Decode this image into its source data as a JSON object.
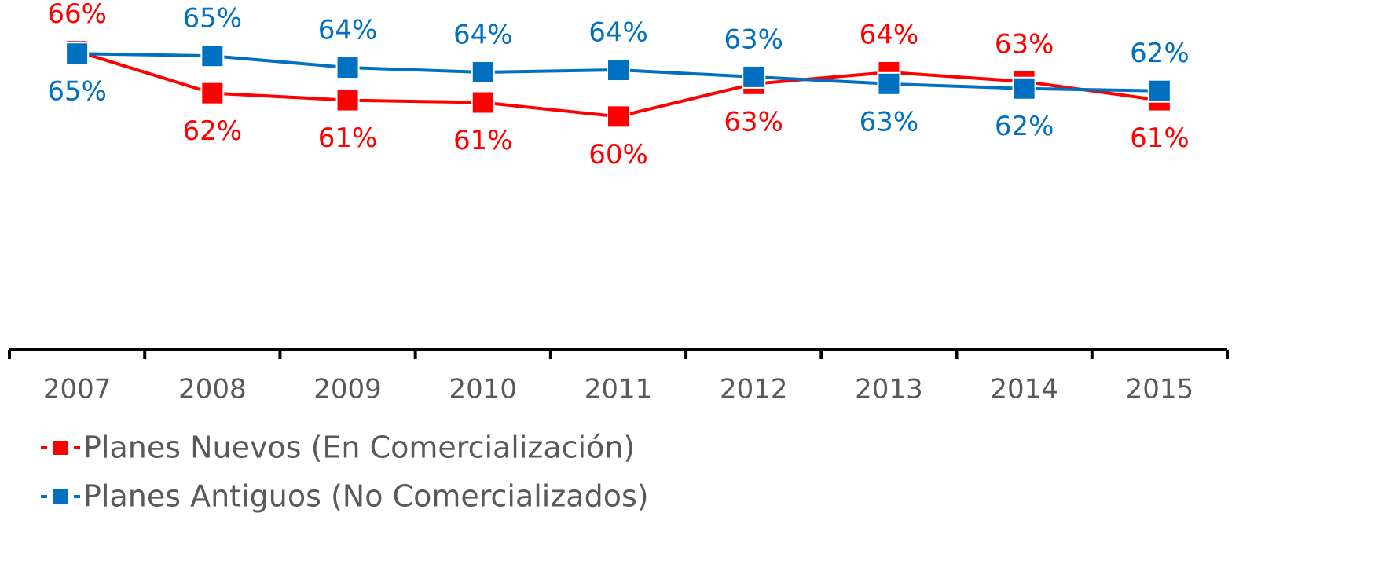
{
  "chart_data": {
    "type": "line",
    "categories": [
      "2007",
      "2008",
      "2009",
      "2010",
      "2011",
      "2012",
      "2013",
      "2014",
      "2015"
    ],
    "ylim": [
      40,
      70
    ],
    "series": [
      {
        "name": "Planes Nuevos (En Comercialización)",
        "color": "#ff0000",
        "values": [
          65.6,
          62.0,
          61.4,
          61.2,
          60.0,
          62.8,
          63.8,
          63.0,
          61.4
        ],
        "value_labels": [
          "66%",
          "62%",
          "61%",
          "61%",
          "60%",
          "63%",
          "64%",
          "63%",
          "61%"
        ]
      },
      {
        "name": "Planes Antiguos (No Comercializados)",
        "color": "#0070c0",
        "values": [
          65.4,
          65.2,
          64.2,
          63.8,
          64.0,
          63.4,
          62.8,
          62.4,
          62.2
        ],
        "value_labels": [
          "65%",
          "65%",
          "64%",
          "64%",
          "64%",
          "63%",
          "63%",
          "62%",
          "62%"
        ]
      }
    ]
  }
}
